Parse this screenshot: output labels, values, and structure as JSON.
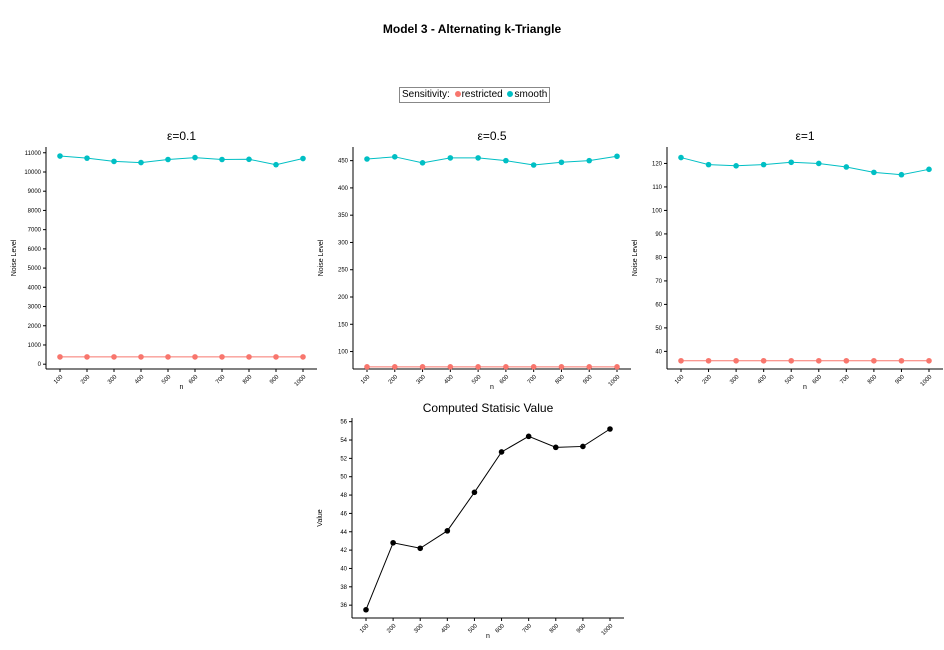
{
  "title": "Model 3 - Alternating k-Triangle",
  "legend": {
    "label": "Sensitivity:",
    "items": [
      {
        "name": "restricted",
        "color": "#F8766D"
      },
      {
        "name": "smooth",
        "color": "#00BFC4"
      }
    ]
  },
  "chart_data": [
    {
      "type": "line",
      "title": "ε=0.1",
      "xlabel": "n",
      "ylabel": "Noise Level",
      "categories": [
        "100",
        "200",
        "300",
        "400",
        "500",
        "600",
        "700",
        "800",
        "900",
        "1000"
      ],
      "ylim": [
        -250,
        11300
      ],
      "yticks": [
        0,
        1000,
        2000,
        3000,
        4000,
        5000,
        6000,
        7000,
        8000,
        9000,
        10000,
        11000
      ],
      "series": [
        {
          "name": "restricted",
          "color": "#F8766D",
          "values": [
            380,
            380,
            380,
            380,
            380,
            380,
            380,
            380,
            380,
            380
          ]
        },
        {
          "name": "smooth",
          "color": "#00BFC4",
          "values": [
            10830,
            10720,
            10550,
            10490,
            10650,
            10750,
            10650,
            10660,
            10380,
            10700
          ]
        }
      ]
    },
    {
      "type": "line",
      "title": "ε=0.5",
      "xlabel": "n",
      "ylabel": "Noise Level",
      "categories": [
        "100",
        "200",
        "300",
        "400",
        "500",
        "600",
        "700",
        "800",
        "900",
        "1000"
      ],
      "ylim": [
        68,
        475
      ],
      "yticks": [
        100,
        150,
        200,
        250,
        300,
        350,
        400,
        450
      ],
      "series": [
        {
          "name": "restricted",
          "color": "#F8766D",
          "values": [
            72,
            72,
            72,
            72,
            72,
            72,
            72,
            72,
            72,
            72
          ]
        },
        {
          "name": "smooth",
          "color": "#00BFC4",
          "values": [
            453,
            457,
            446,
            455,
            455,
            450,
            442,
            447,
            450,
            458
          ]
        }
      ]
    },
    {
      "type": "line",
      "title": "ε=1",
      "xlabel": "n",
      "ylabel": "Noise Level",
      "categories": [
        "100",
        "200",
        "300",
        "400",
        "500",
        "600",
        "700",
        "800",
        "900",
        "1000"
      ],
      "ylim": [
        32.5,
        127
      ],
      "yticks": [
        40,
        50,
        60,
        70,
        80,
        90,
        100,
        110,
        120
      ],
      "series": [
        {
          "name": "restricted",
          "color": "#F8766D",
          "values": [
            36,
            36,
            36,
            36,
            36,
            36,
            36,
            36,
            36,
            36
          ]
        },
        {
          "name": "smooth",
          "color": "#00BFC4",
          "values": [
            122.5,
            119.5,
            119,
            119.5,
            120.5,
            120,
            118.5,
            116.2,
            115.2,
            117.5
          ]
        }
      ]
    },
    {
      "type": "line",
      "title": "Computed Statisic Value",
      "xlabel": "n",
      "ylabel": "Value",
      "categories": [
        "100",
        "200",
        "300",
        "400",
        "500",
        "600",
        "700",
        "800",
        "900",
        "1000"
      ],
      "ylim": [
        34.6,
        56.4
      ],
      "yticks": [
        36,
        38,
        40,
        42,
        44,
        46,
        48,
        50,
        52,
        54,
        56
      ],
      "series": [
        {
          "name": "",
          "color": "#000000",
          "values": [
            35.5,
            42.8,
            42.2,
            44.1,
            48.3,
            52.7,
            54.4,
            53.2,
            53.3,
            55.2
          ]
        }
      ]
    }
  ]
}
